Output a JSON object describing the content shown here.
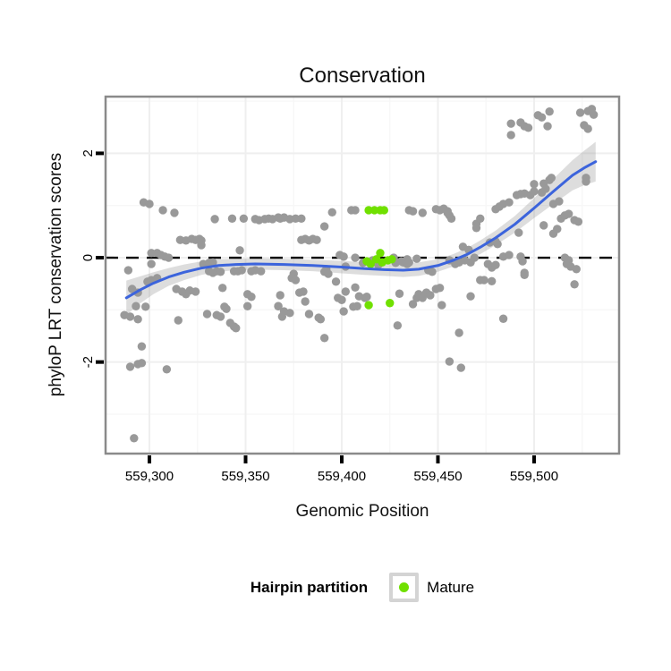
{
  "title": "Conservation",
  "axes": {
    "x": {
      "label": "Genomic Position"
    },
    "y": {
      "label": "phyloP LRT conservation scores"
    }
  },
  "legend": {
    "title": "Hairpin partition",
    "items": [
      {
        "label": "Mature",
        "color": "#70E000"
      }
    ]
  },
  "colors": {
    "point_gray": "#999999",
    "point_mature": "#70E000",
    "smooth_line": "#3C64DC",
    "ci_band": "rgba(150,150,150,0.32)",
    "zero_line": "#000000",
    "panel_border": "#8A8A8A",
    "grid_major": "#EFEFEF",
    "grid_minor": "#F7F7F7",
    "tick": "#000000",
    "text": "#000000"
  },
  "chart_data": {
    "type": "scatter",
    "title": "Conservation",
    "xlabel": "Genomic Position",
    "ylabel": "phyloP LRT conservation scores",
    "xlim": [
      559277.2,
      559544.2
    ],
    "ylim": [
      -3.755,
      3.087
    ],
    "x_ticks": [
      559300,
      559350,
      559400,
      559450,
      559500
    ],
    "x_tick_labels": [
      "559,300",
      "559,350",
      "559,400",
      "559,450",
      "559,500"
    ],
    "x_minor_ticks": [
      559325,
      559375,
      559425,
      559475,
      559525
    ],
    "y_ticks": [
      2,
      0,
      -2
    ],
    "y_tick_labels": [
      "2",
      "0",
      "-2"
    ],
    "y_minor_ticks": [
      3,
      1,
      -1,
      -3
    ],
    "hline": 0,
    "grid": true,
    "legend_position": "bottom",
    "series": [
      {
        "name": "Other",
        "color": "#999999",
        "points": [
          [
            559297,
            1.06
          ],
          [
            559300,
            1.03
          ],
          [
            559307,
            0.91
          ],
          [
            559313,
            0.86
          ],
          [
            559334,
            0.74
          ],
          [
            559343,
            0.75
          ],
          [
            559349,
            0.75
          ],
          [
            559355,
            0.74
          ],
          [
            559357,
            0.72
          ],
          [
            559360,
            0.74
          ],
          [
            559362,
            0.75
          ],
          [
            559364,
            0.74
          ],
          [
            559367,
            0.77
          ],
          [
            559368,
            0.75
          ],
          [
            559370,
            0.77
          ],
          [
            559373,
            0.74
          ],
          [
            559376,
            0.75
          ],
          [
            559379,
            0.75
          ],
          [
            559316,
            0.34
          ],
          [
            559319,
            0.33
          ],
          [
            559322,
            0.36
          ],
          [
            559324,
            0.34
          ],
          [
            559326,
            0.36
          ],
          [
            559327,
            0.33
          ],
          [
            559327,
            0.24
          ],
          [
            559347,
            0.14
          ],
          [
            559301,
            0.09
          ],
          [
            559304,
            0.09
          ],
          [
            559306,
            0.05
          ],
          [
            559308,
            0.02
          ],
          [
            559310,
            0.0
          ],
          [
            559301,
            -0.12
          ],
          [
            559289,
            -0.24
          ],
          [
            559291,
            -0.6
          ],
          [
            559294,
            -0.67
          ],
          [
            559293,
            -0.93
          ],
          [
            559287,
            -1.1
          ],
          [
            559290,
            -1.13
          ],
          [
            559294,
            -1.18
          ],
          [
            559299,
            -0.46
          ],
          [
            559301,
            -0.43
          ],
          [
            559304,
            -0.39
          ],
          [
            559298,
            -0.94
          ],
          [
            559296,
            -1.7
          ],
          [
            559290,
            -2.09
          ],
          [
            559294,
            -2.04
          ],
          [
            559296,
            -2.02
          ],
          [
            559309,
            -2.14
          ],
          [
            559292,
            -3.46
          ],
          [
            559314,
            -0.6
          ],
          [
            559317,
            -0.65
          ],
          [
            559319,
            -0.7
          ],
          [
            559321,
            -0.63
          ],
          [
            559324,
            -0.65
          ],
          [
            559315,
            -1.2
          ],
          [
            559330,
            -1.08
          ],
          [
            559335,
            -1.1
          ],
          [
            559337,
            -1.13
          ],
          [
            559339,
            -0.94
          ],
          [
            559340,
            -0.98
          ],
          [
            559328,
            -0.12
          ],
          [
            559331,
            -0.1
          ],
          [
            559333,
            -0.09
          ],
          [
            559338,
            -0.58
          ],
          [
            559342,
            -1.25
          ],
          [
            559344,
            -1.32
          ],
          [
            559345,
            -1.35
          ],
          [
            559351,
            -0.7
          ],
          [
            559353,
            -0.75
          ],
          [
            559351,
            -0.93
          ],
          [
            559367,
            -0.93
          ],
          [
            559331,
            -0.26
          ],
          [
            559333,
            -0.29
          ],
          [
            559335,
            -0.26
          ],
          [
            559337,
            -0.27
          ],
          [
            559344,
            -0.26
          ],
          [
            559346,
            -0.26
          ],
          [
            559348,
            -0.24
          ],
          [
            559353,
            -0.26
          ],
          [
            559355,
            -0.24
          ],
          [
            559358,
            -0.26
          ],
          [
            559395,
            0.87
          ],
          [
            559405,
            0.91
          ],
          [
            559407,
            0.91
          ],
          [
            559435,
            0.91
          ],
          [
            559437,
            0.89
          ],
          [
            559442,
            0.86
          ],
          [
            559449,
            0.93
          ],
          [
            559451,
            0.91
          ],
          [
            559453,
            0.94
          ],
          [
            559455,
            0.86
          ],
          [
            559456,
            0.81
          ],
          [
            559391,
            0.6
          ],
          [
            559379,
            0.34
          ],
          [
            559381,
            0.36
          ],
          [
            559383,
            0.33
          ],
          [
            559385,
            0.36
          ],
          [
            559387,
            0.34
          ],
          [
            559399,
            0.05
          ],
          [
            559401,
            0.02
          ],
          [
            559407,
            0.0
          ],
          [
            559427,
            0.0
          ],
          [
            559431,
            -0.07
          ],
          [
            559434,
            -0.03
          ],
          [
            559439,
            -0.02
          ],
          [
            559411,
            -0.1
          ],
          [
            559416,
            -0.05
          ],
          [
            559419,
            -0.14
          ],
          [
            559428,
            -0.1
          ],
          [
            559375,
            -0.31
          ],
          [
            559392,
            -0.22
          ],
          [
            559402,
            -0.17
          ],
          [
            559368,
            -0.72
          ],
          [
            559367,
            -0.93
          ],
          [
            559370,
            -1.03
          ],
          [
            559373,
            -1.06
          ],
          [
            559369,
            -1.13
          ],
          [
            559374,
            -0.39
          ],
          [
            559376,
            -0.43
          ],
          [
            559378,
            -0.67
          ],
          [
            559380,
            -0.65
          ],
          [
            559381,
            -0.84
          ],
          [
            559383,
            -1.08
          ],
          [
            559388,
            -1.15
          ],
          [
            559389,
            -1.18
          ],
          [
            559391,
            -1.54
          ],
          [
            559391,
            -0.27
          ],
          [
            559393,
            -0.31
          ],
          [
            559397,
            -0.46
          ],
          [
            559398,
            -0.77
          ],
          [
            559400,
            -0.81
          ],
          [
            559402,
            -0.65
          ],
          [
            559401,
            -1.03
          ],
          [
            559406,
            -0.94
          ],
          [
            559408,
            -0.93
          ],
          [
            559407,
            -0.57
          ],
          [
            559409,
            -0.74
          ],
          [
            559412,
            -0.77
          ],
          [
            559413,
            -0.75
          ],
          [
            559429,
            -1.3
          ],
          [
            559430,
            -0.69
          ],
          [
            559437,
            -0.89
          ],
          [
            559439,
            -0.77
          ],
          [
            559440,
            -0.7
          ],
          [
            559442,
            -0.77
          ],
          [
            559444,
            -0.67
          ],
          [
            559446,
            -0.72
          ],
          [
            559449,
            -0.6
          ],
          [
            559451,
            -0.58
          ],
          [
            559452,
            -0.91
          ],
          [
            559456,
            -1.99
          ],
          [
            559445,
            -0.24
          ],
          [
            559447,
            -0.27
          ],
          [
            559432,
            -0.09
          ],
          [
            559434,
            -0.12
          ],
          [
            559435,
            -0.09
          ],
          [
            559488,
            2.57
          ],
          [
            559493,
            2.59
          ],
          [
            559495,
            2.52
          ],
          [
            559497,
            2.49
          ],
          [
            559488,
            2.35
          ],
          [
            559502,
            2.73
          ],
          [
            559504,
            2.69
          ],
          [
            559508,
            2.8
          ],
          [
            559507,
            2.52
          ],
          [
            559524,
            2.78
          ],
          [
            559528,
            2.81
          ],
          [
            559530,
            2.85
          ],
          [
            559531,
            2.74
          ],
          [
            559526,
            2.54
          ],
          [
            559528,
            2.47
          ],
          [
            559455,
            0.89
          ],
          [
            559457,
            0.75
          ],
          [
            559470,
            0.65
          ],
          [
            559472,
            0.75
          ],
          [
            559470,
            0.57
          ],
          [
            559480,
            0.93
          ],
          [
            559482,
            0.98
          ],
          [
            559484,
            1.03
          ],
          [
            559487,
            1.06
          ],
          [
            559491,
            1.2
          ],
          [
            559493,
            1.22
          ],
          [
            559495,
            1.23
          ],
          [
            559498,
            1.2
          ],
          [
            559500,
            1.27
          ],
          [
            559500,
            1.41
          ],
          [
            559505,
            1.42
          ],
          [
            559508,
            1.49
          ],
          [
            559509,
            1.53
          ],
          [
            559504,
            1.25
          ],
          [
            559506,
            1.32
          ],
          [
            559513,
            1.08
          ],
          [
            559510,
            1.03
          ],
          [
            559527,
            1.53
          ],
          [
            559527,
            1.46
          ],
          [
            559514,
            0.75
          ],
          [
            559516,
            0.81
          ],
          [
            559518,
            0.84
          ],
          [
            559521,
            0.72
          ],
          [
            559523,
            0.69
          ],
          [
            559505,
            0.62
          ],
          [
            559510,
            0.46
          ],
          [
            559512,
            0.55
          ],
          [
            559492,
            0.48
          ],
          [
            559477,
            0.29
          ],
          [
            559480,
            0.31
          ],
          [
            559481,
            0.26
          ],
          [
            559463,
            0.21
          ],
          [
            559466,
            0.15
          ],
          [
            559469,
            0.0
          ],
          [
            559467,
            -0.09
          ],
          [
            559464,
            -0.05
          ],
          [
            559461,
            -0.09
          ],
          [
            559459,
            -0.12
          ],
          [
            559456,
            -0.05
          ],
          [
            559476,
            -0.12
          ],
          [
            559478,
            -0.19
          ],
          [
            559480,
            -0.14
          ],
          [
            559484,
            0.02
          ],
          [
            559487,
            0.05
          ],
          [
            559493,
            0.02
          ],
          [
            559516,
            0.0
          ],
          [
            559518,
            -0.05
          ],
          [
            559517,
            -0.12
          ],
          [
            559519,
            -0.17
          ],
          [
            559495,
            -0.29
          ],
          [
            559522,
            -0.22
          ],
          [
            559472,
            -0.43
          ],
          [
            559474,
            -0.43
          ],
          [
            559478,
            -0.45
          ],
          [
            559467,
            -0.74
          ],
          [
            559484,
            -1.17
          ],
          [
            559494,
            -0.07
          ],
          [
            559495,
            -0.33
          ],
          [
            559461,
            -1.44
          ],
          [
            559462,
            -2.11
          ],
          [
            559521,
            -0.51
          ]
        ]
      },
      {
        "name": "Mature",
        "color": "#70E000",
        "points": [
          [
            559414,
            0.91
          ],
          [
            559417,
            0.91
          ],
          [
            559420,
            0.91
          ],
          [
            559422,
            0.91
          ],
          [
            559420,
            0.09
          ],
          [
            559413,
            -0.07
          ],
          [
            559415,
            -0.12
          ],
          [
            559418,
            -0.03
          ],
          [
            559421,
            -0.09
          ],
          [
            559424,
            -0.05
          ],
          [
            559426,
            -0.03
          ],
          [
            559414,
            -0.91
          ],
          [
            559425,
            -0.87
          ]
        ]
      }
    ],
    "smooth": {
      "color": "#3C64DC",
      "x": [
        559288,
        559295,
        559302,
        559310,
        559318,
        559327,
        559336,
        559345,
        559355,
        559370,
        559385,
        559400,
        559412,
        559422,
        559432,
        559440,
        559450,
        559458,
        559465,
        559472,
        559480,
        559490,
        559500,
        559510,
        559520,
        559526,
        559532
      ],
      "fit": [
        -0.77,
        -0.62,
        -0.49,
        -0.37,
        -0.28,
        -0.2,
        -0.15,
        -0.13,
        -0.12,
        -0.13,
        -0.15,
        -0.18,
        -0.21,
        -0.23,
        -0.24,
        -0.22,
        -0.15,
        -0.05,
        0.06,
        0.2,
        0.38,
        0.64,
        0.95,
        1.27,
        1.58,
        1.72,
        1.84
      ],
      "ci_half": [
        0.33,
        0.26,
        0.21,
        0.17,
        0.15,
        0.13,
        0.12,
        0.11,
        0.11,
        0.11,
        0.11,
        0.12,
        0.12,
        0.12,
        0.13,
        0.13,
        0.12,
        0.12,
        0.12,
        0.13,
        0.14,
        0.16,
        0.19,
        0.24,
        0.29,
        0.33,
        0.38
      ]
    }
  }
}
